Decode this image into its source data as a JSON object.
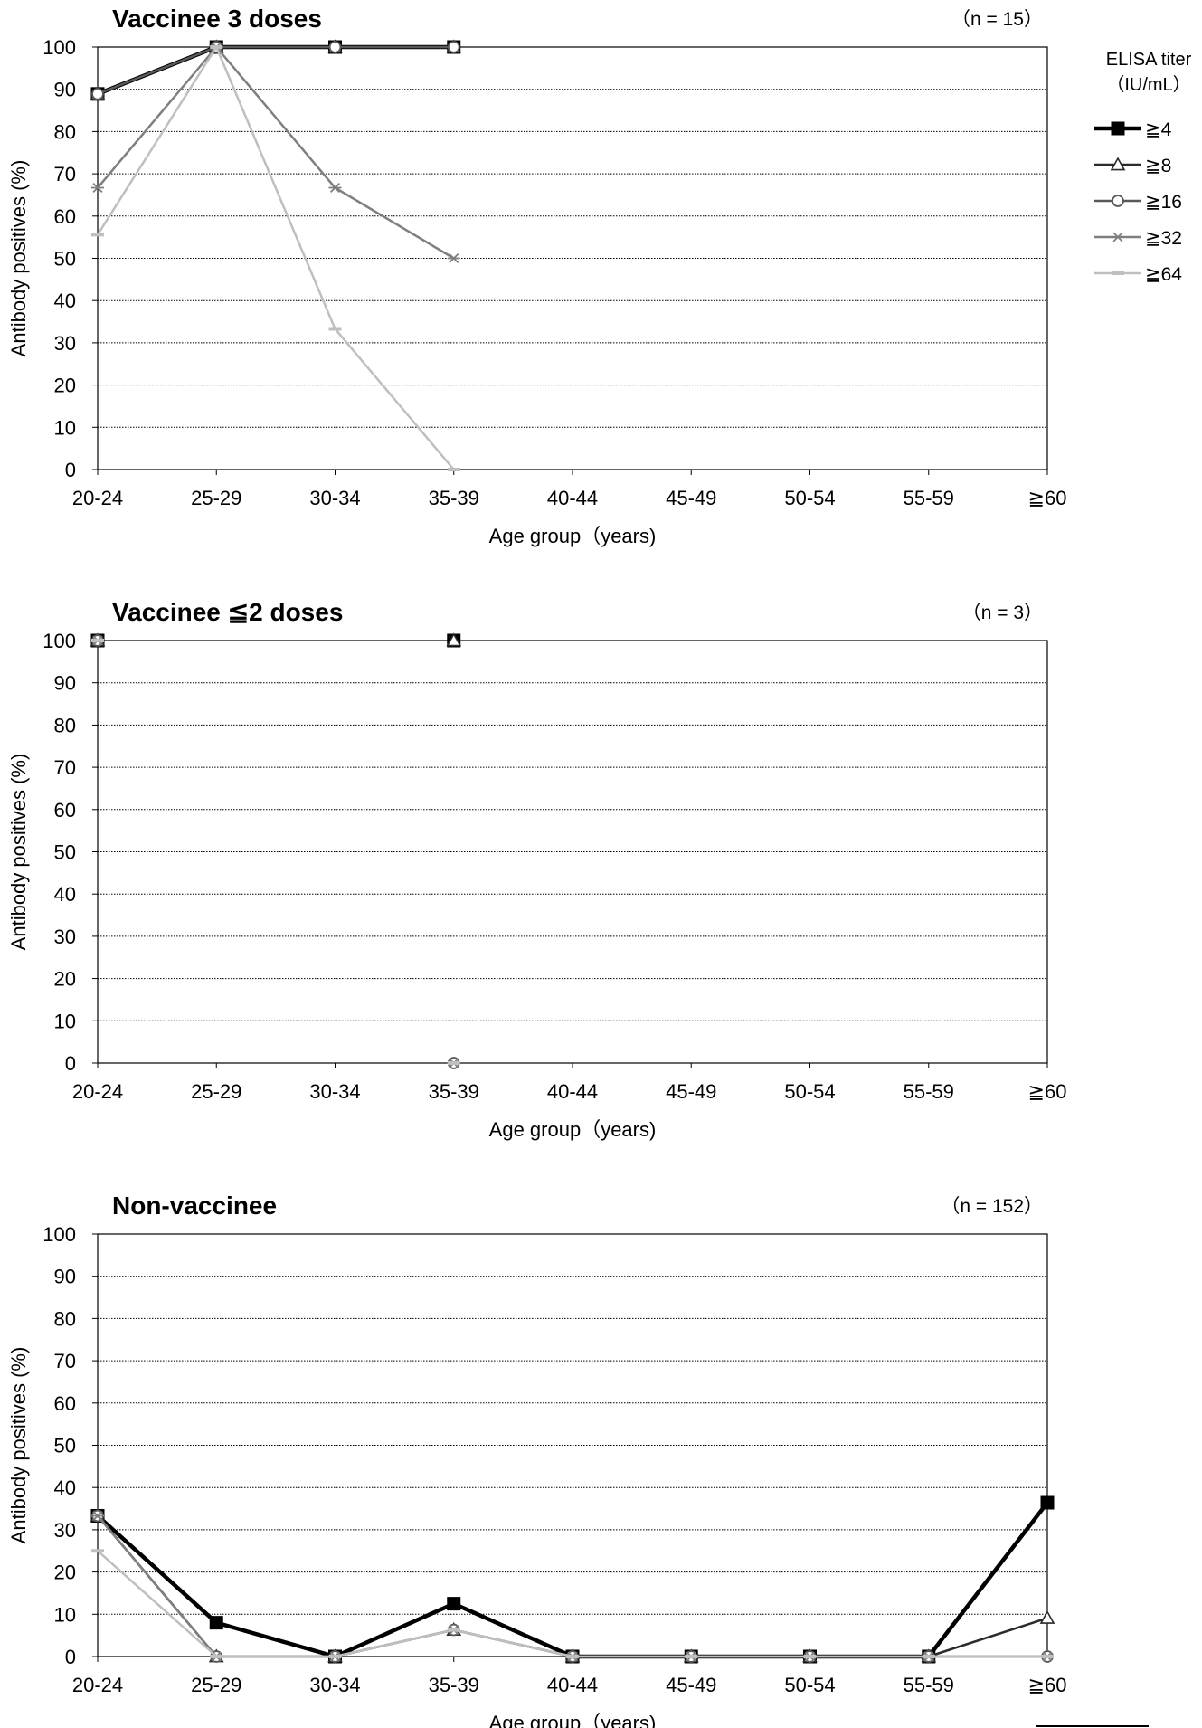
{
  "legend": {
    "title": "ELISA titer",
    "subtitle": "（IU/mL）",
    "position": "top-right",
    "items": [
      {
        "label": "≧4",
        "marker": "filled-square",
        "color": "#000000"
      },
      {
        "label": "≧8",
        "marker": "open-triangle",
        "color": "#2b2b2b"
      },
      {
        "label": "≧16",
        "marker": "open-circle",
        "color": "#595959"
      },
      {
        "label": "≧32",
        "marker": "asterisk",
        "color": "#7f7f7f"
      },
      {
        "label": "≧64",
        "marker": "dash",
        "color": "#bfbfbf"
      }
    ]
  },
  "chart_data": [
    {
      "type": "line",
      "title": "Vaccinee 3 doses",
      "n_label": "（n = 15）",
      "xlabel": "Age group（years)",
      "ylabel": "Antibody positives (%)",
      "ylim": [
        0,
        100
      ],
      "yticks": [
        0,
        10,
        20,
        30,
        40,
        50,
        60,
        70,
        80,
        90,
        100
      ],
      "grid": "horizontal dotted",
      "categories": [
        "20-24",
        "25-29",
        "30-34",
        "35-39",
        "40-44",
        "45-49",
        "50-54",
        "55-59",
        "≧60"
      ],
      "series": [
        {
          "name": "≧4",
          "values": [
            88.9,
            100,
            100,
            100,
            null,
            null,
            null,
            null,
            null
          ]
        },
        {
          "name": "≧8",
          "values": [
            88.9,
            100,
            100,
            100,
            null,
            null,
            null,
            null,
            null
          ]
        },
        {
          "name": "≧16",
          "values": [
            88.9,
            100,
            100,
            100,
            null,
            null,
            null,
            null,
            null
          ]
        },
        {
          "name": "≧32",
          "values": [
            66.7,
            100,
            66.7,
            50,
            null,
            null,
            null,
            null,
            null
          ]
        },
        {
          "name": "≧64",
          "values": [
            55.6,
            100,
            33.3,
            0,
            null,
            null,
            null,
            null,
            null
          ]
        }
      ]
    },
    {
      "type": "line",
      "title": "Vaccinee ≦2 doses",
      "n_label": "（n = 3）",
      "xlabel": "Age group（years)",
      "ylabel": "Antibody positives (%)",
      "ylim": [
        0,
        100
      ],
      "yticks": [
        0,
        10,
        20,
        30,
        40,
        50,
        60,
        70,
        80,
        90,
        100
      ],
      "grid": "horizontal dotted",
      "categories": [
        "20-24",
        "25-29",
        "30-34",
        "35-39",
        "40-44",
        "45-49",
        "50-54",
        "55-59",
        "≧60"
      ],
      "series": [
        {
          "name": "≧4",
          "values": [
            100,
            null,
            null,
            100,
            null,
            null,
            null,
            null,
            null
          ]
        },
        {
          "name": "≧8",
          "values": [
            100,
            null,
            null,
            100,
            null,
            null,
            null,
            null,
            null
          ]
        },
        {
          "name": "≧16",
          "values": [
            100,
            null,
            null,
            0,
            null,
            null,
            null,
            null,
            null
          ]
        },
        {
          "name": "≧32",
          "values": [
            100,
            null,
            null,
            0,
            null,
            null,
            null,
            null,
            null
          ]
        },
        {
          "name": "≧64",
          "values": [
            100,
            null,
            null,
            0,
            null,
            null,
            null,
            null,
            null
          ]
        }
      ]
    },
    {
      "type": "line",
      "title": "Non-vaccinee",
      "n_label": "（n = 152）",
      "xlabel": "Age group（years)",
      "ylabel": "Antibody positives (%)",
      "ylim": [
        0,
        100
      ],
      "yticks": [
        0,
        10,
        20,
        30,
        40,
        50,
        60,
        70,
        80,
        90,
        100
      ],
      "grid": "horizontal dotted",
      "categories": [
        "20-24",
        "25-29",
        "30-34",
        "35-39",
        "40-44",
        "45-49",
        "50-54",
        "55-59",
        "≧60"
      ],
      "series": [
        {
          "name": "≧4",
          "values": [
            33.3,
            8,
            0,
            12.5,
            0,
            0,
            0,
            0,
            36.4
          ]
        },
        {
          "name": "≧8",
          "values": [
            33.3,
            0,
            0,
            6.3,
            0,
            0,
            0,
            0,
            9.1
          ]
        },
        {
          "name": "≧16",
          "values": [
            33.3,
            0,
            0,
            6.3,
            0,
            0,
            0,
            0,
            0
          ]
        },
        {
          "name": "≧32",
          "values": [
            33.3,
            0,
            0,
            6.3,
            0,
            0,
            0,
            0,
            0
          ]
        },
        {
          "name": "≧64",
          "values": [
            25,
            0,
            0,
            6.3,
            0,
            0,
            0,
            0,
            0
          ]
        }
      ]
    }
  ]
}
